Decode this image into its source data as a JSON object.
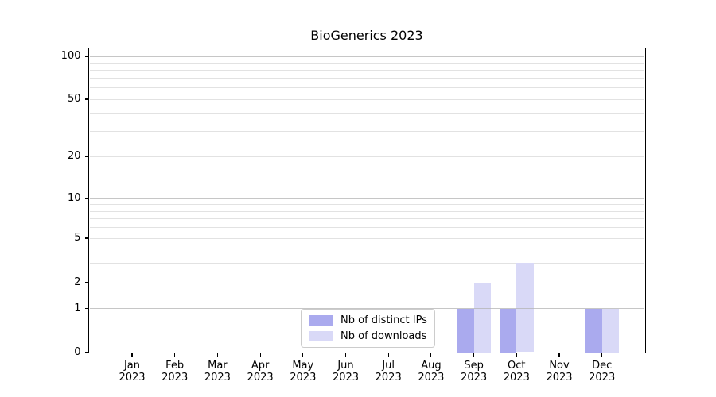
{
  "chart_data": {
    "type": "bar",
    "title": "BioGenerics 2023",
    "categories": [
      "Jan",
      "Feb",
      "Mar",
      "Apr",
      "May",
      "Jun",
      "Jul",
      "Aug",
      "Sep",
      "Oct",
      "Nov",
      "Dec"
    ],
    "year": "2023",
    "series": [
      {
        "name": "Nb of distinct IPs",
        "key": "distinct-ips",
        "color": "#aaaaee",
        "values": [
          0,
          0,
          0,
          0,
          0,
          0,
          0,
          0,
          1,
          1,
          0,
          1
        ]
      },
      {
        "name": "Nb of downloads",
        "key": "downloads",
        "color": "#d9d9f7",
        "values": [
          0,
          0,
          0,
          0,
          0,
          0,
          0,
          0,
          2,
          3,
          0,
          1
        ]
      }
    ],
    "xlabel": "",
    "ylabel": "",
    "y_ticks": [
      0,
      1,
      2,
      5,
      10,
      20,
      50,
      100
    ],
    "y_major_gridlines": [
      1,
      10,
      100
    ],
    "y_minor_gridlines": [
      2,
      3,
      4,
      5,
      6,
      7,
      8,
      9,
      20,
      30,
      40,
      50,
      60,
      70,
      80,
      90
    ],
    "yscale": "symlog-like",
    "ylim": [
      0,
      110
    ],
    "grid": true,
    "legend_position": "lower center"
  },
  "colors": {
    "background": "#ffffff",
    "bar_distinct_ips": "#aaaaee",
    "bar_downloads": "#d9d9f7",
    "grid_major": "#b3b3b3",
    "grid_minor": "#e2e2e2",
    "axis": "#000000",
    "legend_border": "#cccccc",
    "text": "#000000"
  }
}
